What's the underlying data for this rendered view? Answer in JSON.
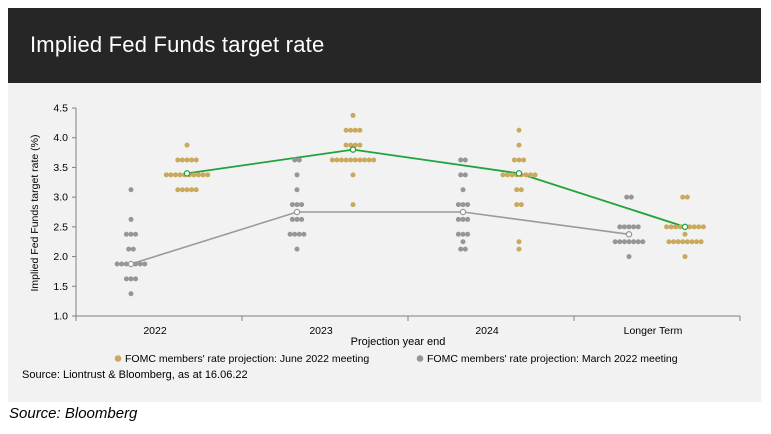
{
  "header": {
    "title": "Implied Fed Funds target rate"
  },
  "footer": {
    "source_main": "Source: Liontrust & Bloomberg, as at 16.06.22",
    "source_outer": "Source: Bloomberg"
  },
  "colors": {
    "june": "#c9a95c",
    "march": "#969696",
    "june_line": "#1fa33a",
    "march_line": "#9a9a9a"
  },
  "chart_data": {
    "type": "scatter",
    "title": "Implied Fed Funds target rate",
    "xlabel": "Projection year end",
    "ylabel": "Implied Fed Funds target rate (%)",
    "ylim": [
      1.0,
      4.5
    ],
    "yticks": [
      "1.0",
      "1.5",
      "2.0",
      "2.5",
      "3.0",
      "3.5",
      "4.0",
      "4.5"
    ],
    "categories": [
      "2022",
      "2023",
      "2024",
      "Longer Term"
    ],
    "legend_position": "bottom",
    "grid": false,
    "series": [
      {
        "name": "FOMC members' rate projection: June 2022 meeting",
        "color": "#c9a95c",
        "dots": [
          [
            {
              "v": 3.875,
              "n": 1
            },
            {
              "v": 3.625,
              "n": 5
            },
            {
              "v": 3.375,
              "n": 10
            },
            {
              "v": 3.125,
              "n": 5
            }
          ],
          [
            {
              "v": 4.375,
              "n": 1
            },
            {
              "v": 4.125,
              "n": 4
            },
            {
              "v": 3.875,
              "n": 4
            },
            {
              "v": 3.625,
              "n": 10
            },
            {
              "v": 3.375,
              "n": 1
            },
            {
              "v": 2.875,
              "n": 1
            }
          ],
          [
            {
              "v": 4.125,
              "n": 1
            },
            {
              "v": 3.875,
              "n": 1
            },
            {
              "v": 3.625,
              "n": 3
            },
            {
              "v": 3.375,
              "n": 8
            },
            {
              "v": 3.125,
              "n": 2
            },
            {
              "v": 2.875,
              "n": 2
            },
            {
              "v": 2.25,
              "n": 1
            },
            {
              "v": 2.125,
              "n": 1
            }
          ],
          [
            {
              "v": 3.0,
              "n": 2
            },
            {
              "v": 2.5,
              "n": 9
            },
            {
              "v": 2.375,
              "n": 1
            },
            {
              "v": 2.25,
              "n": 8
            },
            {
              "v": 2.0,
              "n": 1
            }
          ]
        ],
        "median": [
          3.4,
          3.8,
          3.4,
          2.5
        ]
      },
      {
        "name": "FOMC members' rate projection: March 2022 meeting",
        "color": "#969696",
        "dots": [
          [
            {
              "v": 3.125,
              "n": 1
            },
            {
              "v": 2.625,
              "n": 1
            },
            {
              "v": 2.375,
              "n": 3
            },
            {
              "v": 2.125,
              "n": 2
            },
            {
              "v": 1.875,
              "n": 7
            },
            {
              "v": 1.625,
              "n": 3
            },
            {
              "v": 1.375,
              "n": 1
            }
          ],
          [
            {
              "v": 3.625,
              "n": 2
            },
            {
              "v": 3.375,
              "n": 1
            },
            {
              "v": 3.125,
              "n": 1
            },
            {
              "v": 2.875,
              "n": 3
            },
            {
              "v": 2.625,
              "n": 3
            },
            {
              "v": 2.375,
              "n": 4
            },
            {
              "v": 2.125,
              "n": 1
            }
          ],
          [
            {
              "v": 3.625,
              "n": 2
            },
            {
              "v": 3.375,
              "n": 2
            },
            {
              "v": 3.125,
              "n": 1
            },
            {
              "v": 2.875,
              "n": 3
            },
            {
              "v": 2.625,
              "n": 3
            },
            {
              "v": 2.375,
              "n": 3
            },
            {
              "v": 2.25,
              "n": 1
            },
            {
              "v": 2.125,
              "n": 2
            }
          ],
          [
            {
              "v": 3.0,
              "n": 2
            },
            {
              "v": 2.5,
              "n": 5
            },
            {
              "v": 2.375,
              "n": 1
            },
            {
              "v": 2.25,
              "n": 7
            },
            {
              "v": 2.0,
              "n": 1
            }
          ]
        ],
        "median": [
          1.875,
          2.75,
          2.75,
          2.375
        ]
      }
    ]
  }
}
